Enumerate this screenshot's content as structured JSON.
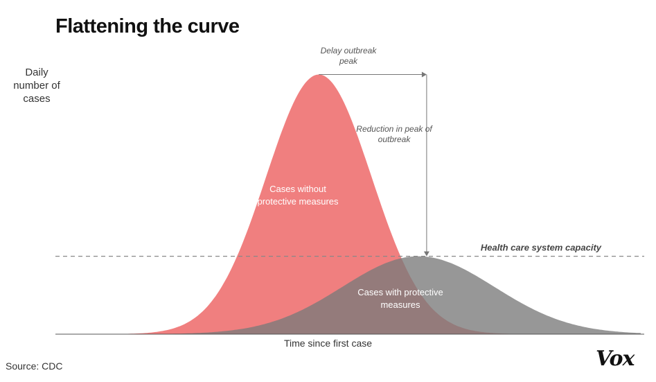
{
  "chart_data": {
    "type": "area",
    "title": "Flattening the curve",
    "xlabel": "Time since first case",
    "ylabel": "Daily number of cases",
    "series": [
      {
        "name": "Cases without protective measures",
        "label_lines": [
          "Cases without",
          "protective measures"
        ],
        "color": "#f07f7f",
        "peak_time": 0.45,
        "peak_value": 1.0,
        "spread": 0.09
      },
      {
        "name": "Cases with protective measures",
        "label_lines": [
          "Cases with protective",
          "measures"
        ],
        "color": "#7a7a7a",
        "peak_time": 0.62,
        "peak_value": 0.3,
        "spread": 0.13
      }
    ],
    "capacity": {
      "label": "Health care system capacity",
      "value": 0.3
    },
    "annotations": {
      "delay_lines": [
        "Delay outbreak",
        "peak"
      ],
      "reduction_lines": [
        "Reduction in peak of",
        "outbreak"
      ]
    },
    "xlim": [
      0,
      1
    ],
    "ylim": [
      0,
      1.02
    ],
    "grid": false,
    "legend": "none"
  },
  "footer": {
    "source": "Source: CDC",
    "logo": "Vox"
  }
}
